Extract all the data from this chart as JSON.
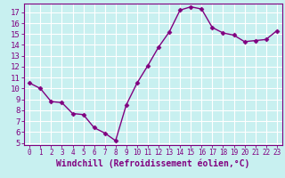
{
  "x": [
    0,
    1,
    2,
    3,
    4,
    5,
    6,
    7,
    8,
    9,
    10,
    11,
    12,
    13,
    14,
    15,
    16,
    17,
    18,
    19,
    20,
    21,
    22,
    23
  ],
  "y": [
    10.5,
    10.0,
    8.8,
    8.7,
    7.7,
    7.6,
    6.4,
    5.9,
    5.2,
    8.5,
    10.5,
    12.1,
    13.8,
    15.2,
    17.2,
    17.5,
    17.3,
    15.6,
    15.1,
    14.9,
    14.3,
    14.4,
    14.5,
    15.3
  ],
  "xlim": [
    -0.5,
    23.5
  ],
  "ylim": [
    4.8,
    17.8
  ],
  "yticks": [
    5,
    6,
    7,
    8,
    9,
    10,
    11,
    12,
    13,
    14,
    15,
    16,
    17
  ],
  "xticks": [
    0,
    1,
    2,
    3,
    4,
    5,
    6,
    7,
    8,
    9,
    10,
    11,
    12,
    13,
    14,
    15,
    16,
    17,
    18,
    19,
    20,
    21,
    22,
    23
  ],
  "line_color": "#800080",
  "marker": "D",
  "marker_size": 2.5,
  "bg_color": "#c8f0f0",
  "grid_color": "#ffffff",
  "xlabel": "Windchill (Refroidissement éolien,°C)",
  "xlabel_fontsize": 7,
  "tick_fontsize": 6.5,
  "xtick_fontsize": 5.5,
  "line_width": 1.0
}
